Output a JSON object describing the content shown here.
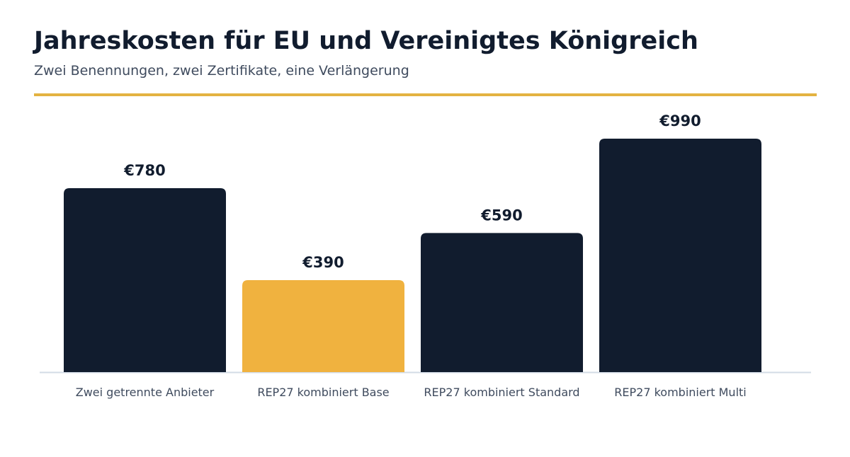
{
  "title": "Jahreskosten für EU und Vereinigtes Königreich",
  "subtitle": "Zwei Benennungen, zwei Zertifikate, eine Verlängerung",
  "colors": {
    "title": "#111c2e",
    "subtitle": "#3f4b5e",
    "accent_rule": "#e3b341",
    "bar_default": "#111c2e",
    "bar_highlight": "#f0b23f",
    "value_label": "#111c2e",
    "tick_label": "#3f4b5e",
    "baseline": "#d3dbe6"
  },
  "chart_data": {
    "type": "bar",
    "categories": [
      "Zwei getrennte Anbieter",
      "REP27 kombiniert Base",
      "REP27 kombiniert Standard",
      "REP27 kombiniert Multi"
    ],
    "values": [
      780,
      390,
      590,
      990
    ],
    "value_labels": [
      "€780",
      "€390",
      "€590",
      "€990"
    ],
    "highlight_index": 1,
    "ylim": [
      0,
      990
    ],
    "grid": false,
    "legend": "none"
  }
}
